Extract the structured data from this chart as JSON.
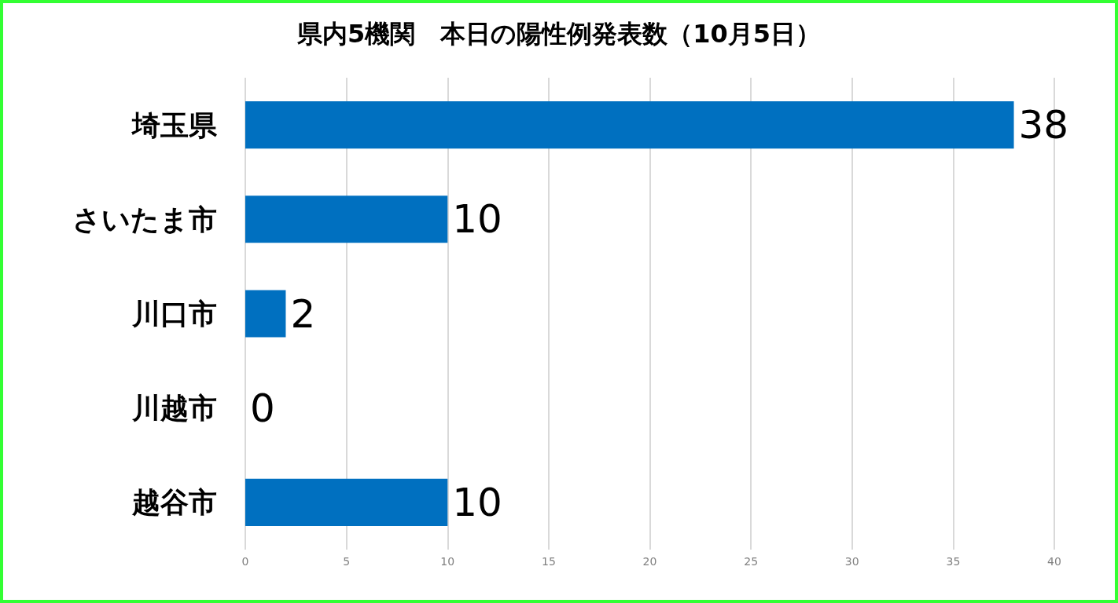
{
  "chart_data": {
    "type": "bar",
    "orientation": "horizontal",
    "title": "県内5機関　本日の陽性例発表数（10月5日）",
    "categories": [
      "埼玉県",
      "さいたま市",
      "川口市",
      "川越市",
      "越谷市"
    ],
    "values": [
      38,
      10,
      2,
      0,
      10
    ],
    "color": "#0070c0",
    "xlim": [
      0,
      40
    ],
    "xticks": [
      0,
      5,
      10,
      15,
      20,
      25,
      30,
      35,
      40
    ],
    "grid": "x",
    "data_labels": true
  }
}
